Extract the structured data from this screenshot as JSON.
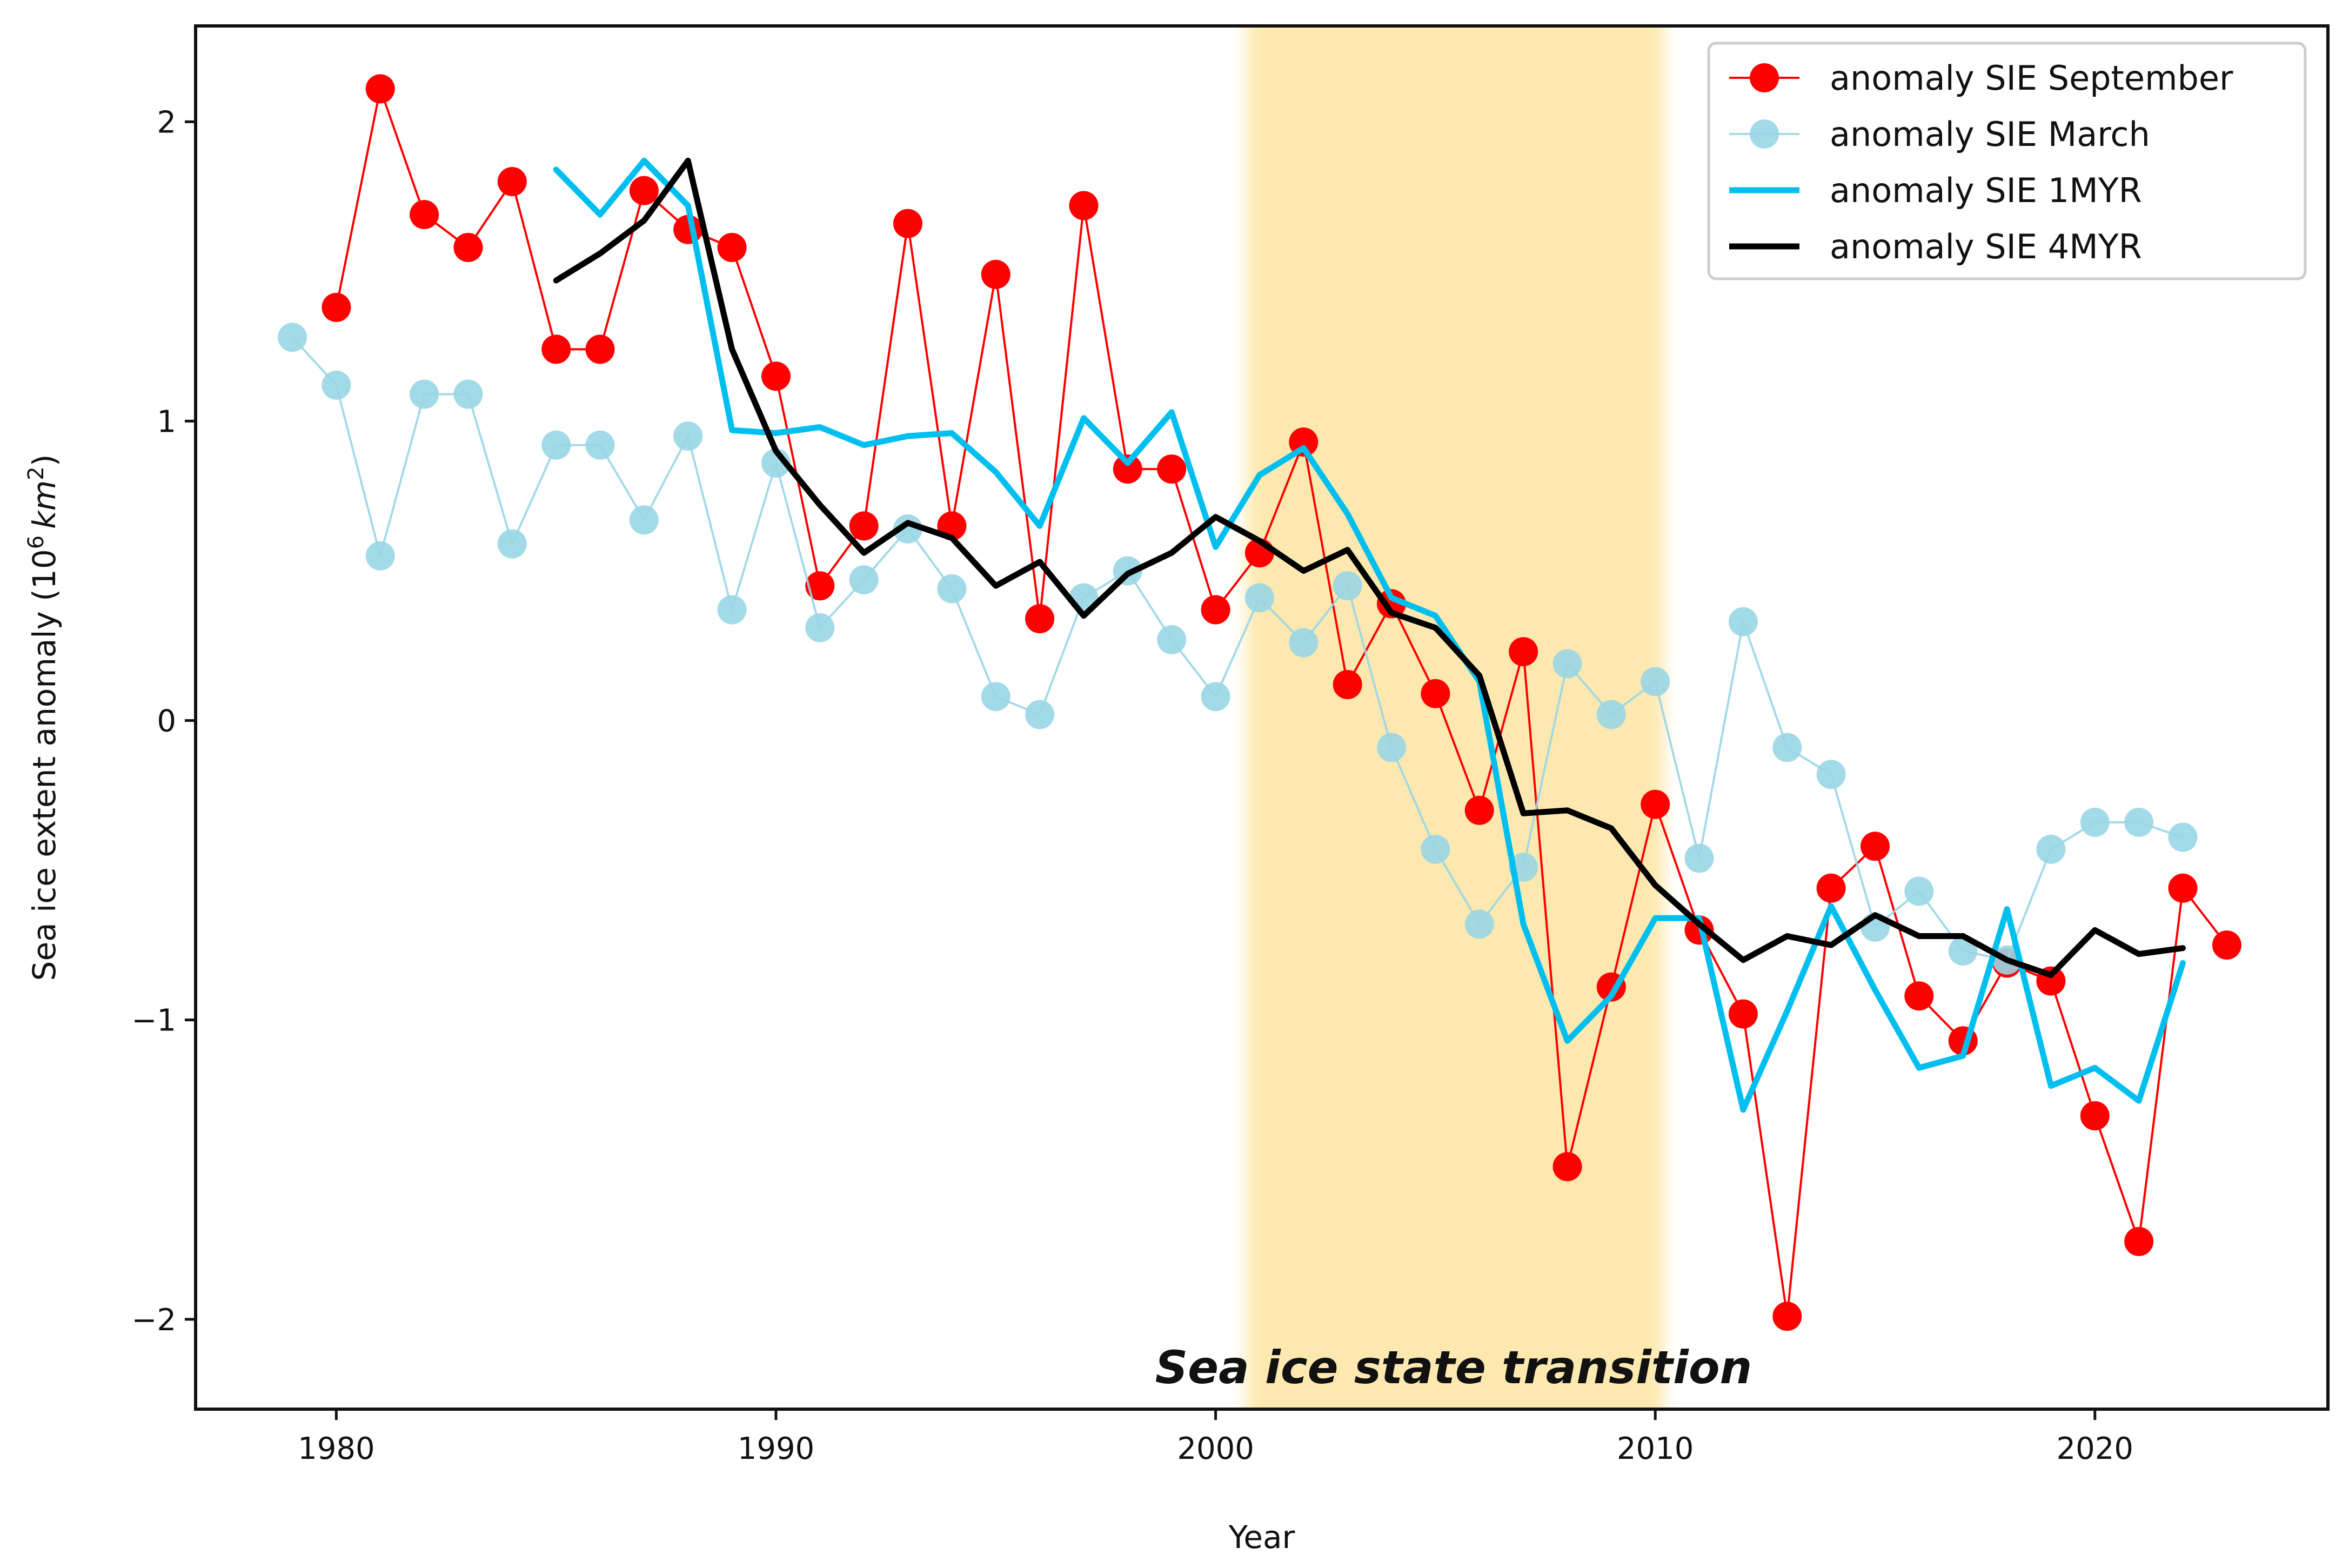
{
  "chart_data": {
    "type": "line",
    "title": "",
    "xlabel": "Year",
    "ylabel_main": "Sea ice extent anomaly (10",
    "ylabel_sup": "6",
    "ylabel_unit": "km",
    "ylabel_unit_sup": "2",
    "ylabel_close": ")",
    "xlim": [
      1976.8,
      2025.3
    ],
    "ylim": [
      -2.3,
      2.32
    ],
    "xticks": [
      1980,
      1990,
      2000,
      2010,
      2020
    ],
    "yticks": [
      2,
      1,
      0,
      -1,
      -2
    ],
    "xtick_labels": [
      "1980",
      "1990",
      "2000",
      "2010",
      "2020"
    ],
    "ytick_labels": [
      "2",
      "1",
      "0",
      "−1",
      "−2"
    ],
    "grid": false,
    "legend_position": "top-right",
    "shaded_region": {
      "x_start": 2000.7,
      "x_end": 2010.2,
      "color": "#fde9b0",
      "label": "Sea ice state transition"
    },
    "series": [
      {
        "name": "anomaly SIE September",
        "color": "#ff0000",
        "style": "line-markers",
        "x": [
          1980,
          1981,
          1982,
          1983,
          1984,
          1985,
          1986,
          1987,
          1988,
          1989,
          1990,
          1991,
          1992,
          1993,
          1994,
          1995,
          1996,
          1997,
          1998,
          1999,
          2000,
          2001,
          2002,
          2003,
          2004,
          2005,
          2006,
          2007,
          2008,
          2009,
          2010,
          2011,
          2012,
          2013,
          2014,
          2015,
          2016,
          2017,
          2018,
          2019,
          2020,
          2021,
          2022,
          2023
        ],
        "values": [
          1.38,
          2.11,
          1.69,
          1.58,
          1.8,
          1.24,
          1.24,
          1.77,
          1.64,
          1.58,
          1.15,
          0.45,
          0.65,
          1.66,
          0.65,
          1.49,
          0.34,
          1.72,
          0.84,
          0.84,
          0.37,
          0.56,
          0.93,
          0.12,
          0.39,
          0.09,
          -0.3,
          0.23,
          -1.49,
          -0.89,
          -0.28,
          -0.7,
          -0.98,
          -1.99,
          -0.56,
          -0.42,
          -0.92,
          -1.07,
          -0.81,
          -0.87,
          -1.32,
          -1.74,
          -0.56,
          -0.75
        ]
      },
      {
        "name": "anomaly SIE March",
        "color": "#99d6e6",
        "style": "line-markers",
        "x": [
          1979,
          1980,
          1981,
          1982,
          1983,
          1984,
          1985,
          1986,
          1987,
          1988,
          1989,
          1990,
          1991,
          1992,
          1993,
          1994,
          1995,
          1996,
          1997,
          1998,
          1999,
          2000,
          2001,
          2002,
          2003,
          2004,
          2005,
          2006,
          2007,
          2008,
          2009,
          2010,
          2011,
          2012,
          2013,
          2014,
          2015,
          2016,
          2017,
          2018,
          2019,
          2020,
          2021,
          2022
        ],
        "values": [
          1.28,
          1.12,
          0.55,
          1.09,
          1.09,
          0.59,
          0.92,
          0.92,
          0.67,
          0.95,
          0.37,
          0.86,
          0.31,
          0.47,
          0.64,
          0.44,
          0.08,
          0.02,
          0.41,
          0.5,
          0.27,
          0.08,
          0.41,
          0.26,
          0.45,
          -0.09,
          -0.43,
          -0.68,
          -0.49,
          0.19,
          0.02,
          0.13,
          -0.46,
          0.33,
          -0.09,
          -0.18,
          -0.69,
          -0.57,
          -0.77,
          -0.8,
          -0.43,
          -0.34,
          -0.34,
          -0.39
        ]
      },
      {
        "name": "anomaly SIE 1MYR",
        "color": "#00bfef",
        "style": "line",
        "x": [
          1985,
          1986,
          1987,
          1988,
          1989,
          1990,
          1991,
          1992,
          1993,
          1994,
          1995,
          1996,
          1997,
          1998,
          1999,
          2000,
          2001,
          2002,
          2003,
          2004,
          2005,
          2006,
          2007,
          2008,
          2009,
          2010,
          2011,
          2012,
          2013,
          2014,
          2015,
          2016,
          2017,
          2018,
          2019,
          2020,
          2021,
          2022
        ],
        "values": [
          1.84,
          1.69,
          1.87,
          1.72,
          0.97,
          0.96,
          0.98,
          0.92,
          0.95,
          0.96,
          0.83,
          0.65,
          1.01,
          0.86,
          1.03,
          0.58,
          0.82,
          0.91,
          0.69,
          0.41,
          0.35,
          0.13,
          -0.68,
          -1.07,
          -0.92,
          -0.66,
          -0.66,
          -1.3,
          -0.97,
          -0.62,
          -0.9,
          -1.16,
          -1.12,
          -0.63,
          -1.22,
          -1.16,
          -1.27,
          -0.81
        ]
      },
      {
        "name": "anomaly SIE 4MYR",
        "color": "#000000",
        "style": "line",
        "x": [
          1985,
          1986,
          1987,
          1988,
          1989,
          1990,
          1991,
          1992,
          1993,
          1994,
          1995,
          1996,
          1997,
          1998,
          1999,
          2000,
          2001,
          2002,
          2003,
          2004,
          2005,
          2006,
          2007,
          2008,
          2009,
          2010,
          2011,
          2012,
          2013,
          2014,
          2015,
          2016,
          2017,
          2018,
          2019,
          2020,
          2021,
          2022
        ],
        "values": [
          1.47,
          1.56,
          1.67,
          1.87,
          1.24,
          0.9,
          0.72,
          0.56,
          0.66,
          0.61,
          0.45,
          0.53,
          0.35,
          0.49,
          0.56,
          0.68,
          0.6,
          0.5,
          0.57,
          0.36,
          0.31,
          0.15,
          -0.31,
          -0.3,
          -0.36,
          -0.55,
          -0.68,
          -0.8,
          -0.72,
          -0.75,
          -0.65,
          -0.72,
          -0.72,
          -0.8,
          -0.85,
          -0.7,
          -0.78,
          -0.76
        ]
      }
    ]
  }
}
